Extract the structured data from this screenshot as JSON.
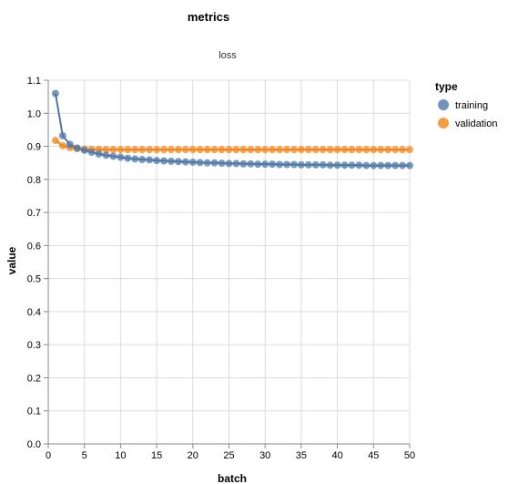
{
  "chart_data": {
    "type": "line",
    "title": "metrics",
    "subtitle": "loss",
    "xlabel": "batch",
    "ylabel": "value",
    "xlim": [
      0,
      50
    ],
    "ylim": [
      0,
      1.1
    ],
    "x_ticks": [
      0,
      5,
      10,
      15,
      20,
      25,
      30,
      35,
      40,
      45,
      50
    ],
    "y_ticks": [
      "0.0",
      "0.1",
      "0.2",
      "0.3",
      "0.4",
      "0.5",
      "0.6",
      "0.7",
      "0.8",
      "0.9",
      "1.0",
      "1.1"
    ],
    "grid": true,
    "legend": {
      "title": "type",
      "placement": "right"
    },
    "x": [
      1,
      2,
      3,
      4,
      5,
      6,
      7,
      8,
      9,
      10,
      11,
      12,
      13,
      14,
      15,
      16,
      17,
      18,
      19,
      20,
      21,
      22,
      23,
      24,
      25,
      26,
      27,
      28,
      29,
      30,
      31,
      32,
      33,
      34,
      35,
      36,
      37,
      38,
      39,
      40,
      41,
      42,
      43,
      44,
      45,
      46,
      47,
      48,
      49,
      50
    ],
    "series": [
      {
        "name": "training",
        "color": "#4c78a8",
        "values": [
          1.06,
          0.932,
          0.906,
          0.895,
          0.888,
          0.882,
          0.877,
          0.873,
          0.87,
          0.867,
          0.864,
          0.862,
          0.86,
          0.859,
          0.857,
          0.856,
          0.855,
          0.854,
          0.853,
          0.852,
          0.851,
          0.85,
          0.85,
          0.849,
          0.848,
          0.848,
          0.847,
          0.847,
          0.846,
          0.846,
          0.846,
          0.845,
          0.845,
          0.845,
          0.844,
          0.844,
          0.844,
          0.844,
          0.843,
          0.843,
          0.843,
          0.843,
          0.843,
          0.842,
          0.842,
          0.842,
          0.842,
          0.842,
          0.842,
          0.842
        ]
      },
      {
        "name": "validation",
        "color": "#f58518",
        "values": [
          0.918,
          0.902,
          0.896,
          0.893,
          0.892,
          0.891,
          0.891,
          0.89,
          0.89,
          0.89,
          0.89,
          0.89,
          0.89,
          0.89,
          0.89,
          0.89,
          0.89,
          0.89,
          0.89,
          0.89,
          0.89,
          0.89,
          0.89,
          0.89,
          0.89,
          0.89,
          0.89,
          0.89,
          0.89,
          0.89,
          0.89,
          0.89,
          0.89,
          0.89,
          0.89,
          0.89,
          0.89,
          0.89,
          0.89,
          0.89,
          0.89,
          0.89,
          0.89,
          0.89,
          0.89,
          0.89,
          0.89,
          0.89,
          0.89,
          0.89
        ]
      }
    ]
  }
}
